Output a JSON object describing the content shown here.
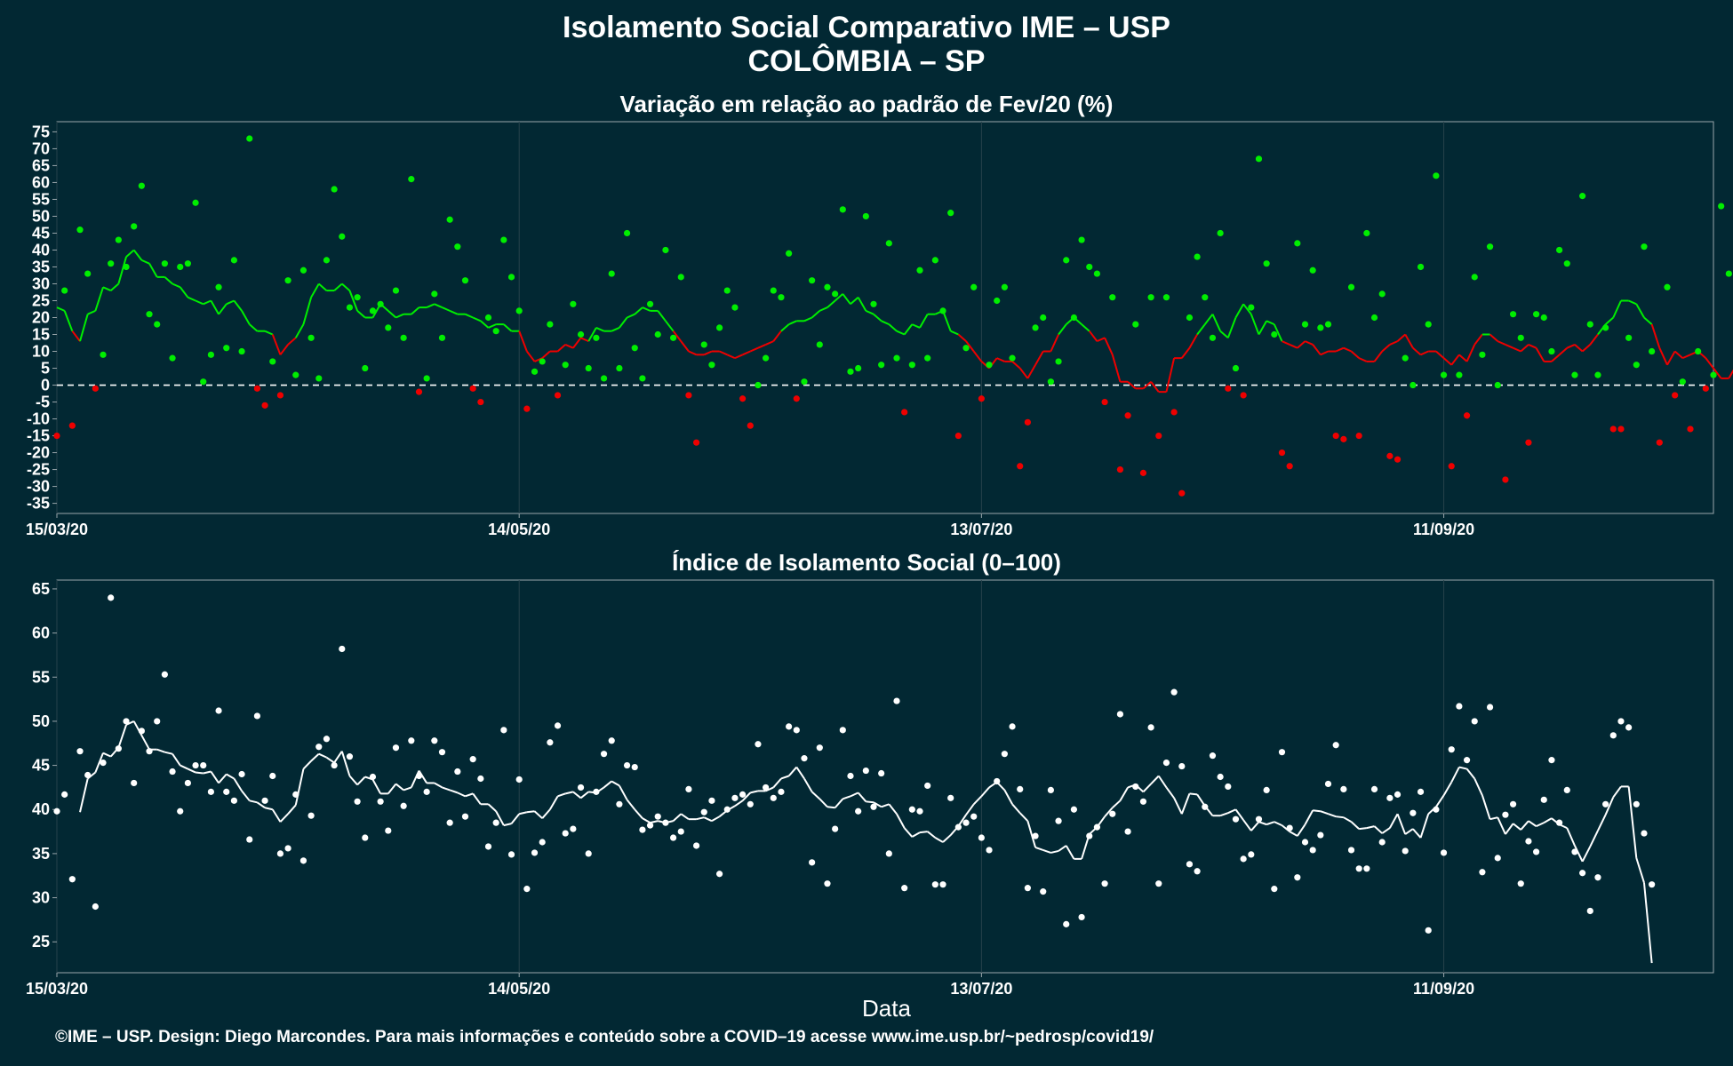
{
  "title_line1": "Isolamento Social Comparativo IME – USP",
  "title_line2": "COLÔMBIA – SP",
  "footer": "©IME – USP. Design: Diego Marcondes. Para mais informações e conteúdo sobre a COVID–19 acesse www.ime.usp.br/~pedrosp/covid19/",
  "colors": {
    "background": "#022833",
    "positive": "#00ee00",
    "negative": "#ee0000",
    "index": "#ffffff",
    "axis": "#9aa6ab"
  },
  "chart_data": [
    {
      "type": "scatter",
      "title": "Variação em relação ao padrão de Fev/20 (%)",
      "xlabel": "",
      "ylabel": "",
      "x_start": "2020-03-15",
      "x_end": "2020-10-16",
      "xticks": [
        "15/03/20",
        "14/05/20",
        "13/07/20",
        "11/09/20"
      ],
      "ylim": [
        -38,
        78
      ],
      "yticks": [
        75,
        70,
        65,
        60,
        55,
        50,
        45,
        40,
        35,
        30,
        25,
        20,
        15,
        10,
        5,
        0,
        -5,
        -10,
        -15,
        -20,
        -25,
        -30,
        -35
      ],
      "reference_line": 0,
      "series": [
        {
          "values": [
            -15,
            28,
            -12,
            46,
            33,
            -1,
            9,
            36,
            43,
            35,
            47,
            59,
            21,
            18,
            36,
            8,
            35,
            36,
            54,
            1,
            9,
            29,
            11,
            37,
            10,
            73,
            -1,
            -6,
            7,
            -3,
            31,
            3,
            34,
            14,
            2,
            37,
            58,
            44,
            23,
            26,
            5,
            22,
            24,
            17,
            28,
            14,
            61,
            -2,
            2,
            27,
            14,
            49,
            41,
            31,
            -1,
            -5,
            20,
            16,
            43,
            32,
            22,
            -7,
            4,
            7,
            18,
            -3,
            6,
            24,
            15,
            5,
            14,
            2,
            33,
            5,
            45,
            11,
            2,
            24,
            15,
            40,
            14,
            32,
            -3,
            -17,
            12,
            6,
            17,
            28,
            23,
            -4,
            -12,
            0,
            8,
            28,
            26,
            39,
            -4,
            1,
            31,
            12,
            29,
            27,
            52,
            4,
            5,
            50,
            24,
            6,
            42,
            8,
            -8,
            6,
            34,
            8,
            37,
            22,
            51,
            -15,
            11,
            29,
            -4,
            6,
            25,
            29,
            8,
            -24,
            -11,
            17,
            20,
            1,
            7,
            37,
            20,
            43,
            35,
            33,
            -5,
            26,
            -25,
            -9,
            18,
            -26,
            26,
            -15,
            26,
            -8,
            -32,
            20,
            38,
            26,
            14,
            45,
            -1,
            5,
            -3,
            23,
            67,
            36,
            15,
            -20,
            -24,
            42,
            18,
            34,
            17,
            18,
            -15,
            -16,
            29,
            -15,
            45,
            20,
            27,
            -21,
            -22,
            8,
            0,
            35,
            18,
            62,
            3,
            -24,
            3,
            -9,
            32,
            9,
            41,
            0,
            -28,
            21,
            14,
            -17,
            21,
            20,
            10,
            40,
            36,
            3,
            56,
            18,
            3,
            17,
            -13,
            -13,
            14,
            6,
            41,
            10,
            -17,
            29,
            -3,
            1,
            -13,
            10,
            -1,
            3,
            53,
            33,
            27,
            13,
            8
          ],
          "rolling": [
            23,
            22,
            16,
            13,
            21,
            22,
            29,
            28,
            30,
            38,
            40,
            37,
            36,
            32,
            32,
            30,
            29,
            26,
            25,
            24,
            25,
            21,
            24,
            25,
            22,
            18,
            16,
            16,
            15,
            9,
            12,
            14,
            18,
            26,
            30,
            28,
            28,
            30,
            28,
            22,
            20,
            20,
            24,
            22,
            20,
            21,
            21,
            23,
            23,
            24,
            23,
            22,
            21,
            21,
            20,
            19,
            17,
            18,
            18,
            16,
            16,
            10,
            7,
            8,
            10,
            10,
            12,
            11,
            14,
            13,
            17,
            16,
            16,
            17,
            20,
            21,
            23,
            22,
            22,
            19,
            16,
            13,
            10,
            9,
            9,
            10,
            10,
            9,
            8,
            9,
            10,
            11,
            12,
            13,
            16,
            18,
            19,
            19,
            20,
            22,
            23,
            25,
            27,
            24,
            26,
            22,
            21,
            19,
            18,
            16,
            15,
            18,
            17,
            21,
            21,
            22,
            16,
            15,
            13,
            10,
            7,
            5,
            8,
            7,
            7,
            5,
            2,
            6,
            10,
            10,
            15,
            18,
            20,
            18,
            16,
            13,
            14,
            9,
            1,
            1,
            -1,
            -1,
            1,
            -2,
            -2,
            8,
            8,
            11,
            15,
            18,
            21,
            16,
            14,
            20,
            24,
            21,
            15,
            19,
            18,
            13,
            12,
            11,
            13,
            12,
            9,
            10,
            10,
            11,
            10,
            8,
            7,
            7,
            10,
            12,
            13,
            15,
            11,
            9,
            10,
            10,
            8,
            6,
            9,
            7,
            12,
            15,
            15,
            13,
            12,
            11,
            10,
            12,
            11,
            7,
            7,
            9,
            11,
            12,
            10,
            12,
            15,
            18,
            20,
            25,
            25,
            24,
            20,
            18,
            11,
            6,
            10,
            8,
            9,
            10,
            8,
            5,
            2,
            2,
            6,
            9,
            14,
            19,
            20,
            20
          ]
        }
      ]
    },
    {
      "type": "scatter",
      "title": "Índice de Isolamento Social (0–100)",
      "xlabel": "Data",
      "ylabel": "",
      "x_start": "2020-03-15",
      "x_end": "2020-10-16",
      "xticks": [
        "15/03/20",
        "14/05/20",
        "13/07/20",
        "11/09/20"
      ],
      "ylim": [
        21.5,
        66
      ],
      "yticks": [
        65,
        60,
        55,
        50,
        45,
        40,
        35,
        30,
        25
      ],
      "series": [
        {
          "values": [
            39.8,
            41.7,
            32.1,
            46.6,
            43.9,
            29,
            45.3,
            64,
            46.9,
            50,
            43,
            48.9,
            46.6,
            50,
            55.3,
            44.3,
            39.8,
            43,
            45,
            45,
            42,
            51.2,
            42,
            41,
            44,
            36.6,
            50.6,
            41,
            43.8,
            35,
            35.6,
            41.7,
            34.2,
            39.3,
            47.1,
            48,
            45,
            58.2,
            46,
            40.9,
            36.8,
            43.7,
            40.9,
            37.6,
            47,
            40.4,
            47.8,
            43.8,
            42,
            47.8,
            46.5,
            38.5,
            44.3,
            39.2,
            45.7,
            43.5,
            35.8,
            38.5,
            49,
            34.9,
            43.4,
            31,
            35.1,
            36.3,
            47.6,
            49.5,
            37.3,
            37.8,
            42.5,
            35,
            42,
            46.3,
            47.8,
            40.6,
            45,
            44.8,
            37.7,
            38.2,
            39.2,
            38.5,
            36.8,
            37.5,
            42.3,
            35.9,
            39.7,
            41,
            32.7,
            40,
            41.3,
            41.7,
            40.6,
            47.4,
            42.5,
            41.3,
            42,
            49.4,
            49,
            45.8,
            34,
            47,
            31.6,
            37.8,
            49,
            43.8,
            39.8,
            44.4,
            40.3,
            44.1,
            35,
            52.3,
            31.1,
            40,
            39.8,
            42.7,
            31.5,
            31.5,
            41.3,
            38,
            38.5,
            39.2,
            36.8,
            35.4,
            43.2,
            46.3,
            49.4,
            42.3,
            31.1,
            37,
            30.7,
            42.2,
            38.7,
            27,
            40,
            27.8,
            37,
            38,
            31.6,
            39.5,
            50.8,
            37.5,
            42.6,
            40.9,
            49.3,
            31.6,
            45.3,
            53.3,
            44.9,
            33.8,
            33,
            40.3,
            46.1,
            43.7,
            42.6,
            38.9,
            34.4,
            34.9,
            38.9,
            42.2,
            31,
            46.5,
            37.9,
            32.3,
            36.3,
            35.4,
            37.1,
            42.9,
            47.3,
            42.3,
            35.4,
            33.3,
            33.3,
            42.3,
            36.3,
            41.3,
            41.7,
            35.3,
            39.6,
            42,
            26.3,
            40,
            35.1,
            46.8,
            51.7,
            45.6,
            50,
            32.9,
            51.6,
            34.5,
            39.4,
            40.6,
            31.6,
            36.4,
            35.2,
            41.1,
            45.6,
            38.5,
            42.2,
            35.2,
            32.8,
            28.5,
            32.3,
            40.6,
            48.4,
            50,
            49.3,
            40.6,
            37.3,
            31.5
          ],
          "rolling": [
            null,
            null,
            null,
            39.7,
            43.5,
            44.2,
            46.4,
            46,
            47,
            49.6,
            50,
            48.4,
            46.8,
            46.8,
            46.5,
            46.3,
            45,
            44.6,
            44.2,
            44.1,
            44.3,
            43,
            44,
            43.5,
            42.1,
            41,
            40.8,
            40.2,
            40,
            38.6,
            39.5,
            40.5,
            44.6,
            45.5,
            46.3,
            45.9,
            45.3,
            46.6,
            43.8,
            42.8,
            43.7,
            43.4,
            41.8,
            41.8,
            42.9,
            42.2,
            42.5,
            44.4,
            43,
            43,
            42.5,
            42.2,
            41.9,
            41.5,
            41.8,
            40.6,
            40.6,
            39.8,
            38.2,
            38.4,
            39.5,
            39.7,
            39.8,
            39,
            40,
            41.5,
            41.8,
            42,
            41.3,
            42,
            41.9,
            42.5,
            43.2,
            42.7,
            41.1,
            40,
            39,
            38.5,
            38.7,
            38.5,
            38.7,
            39.5,
            38.9,
            38.9,
            39.1,
            38.7,
            39.2,
            39.9,
            40.4,
            41,
            41.9,
            42.1,
            42.1,
            42.5,
            43.5,
            43.8,
            44.8,
            43.5,
            42,
            41.2,
            40.3,
            40.2,
            41.2,
            41.5,
            41.9,
            40.9,
            40.8,
            40.3,
            40.6,
            39.5,
            37.9,
            36.9,
            37.4,
            37.5,
            36.8,
            36.3,
            37.1,
            38.1,
            39.4,
            40.6,
            41.5,
            42.5,
            43.1,
            42.2,
            40.6,
            39.6,
            38.7,
            35.7,
            35.4,
            35.1,
            35.3,
            35.9,
            34.4,
            34.4,
            37.2,
            38,
            39.2,
            40.2,
            41,
            42.5,
            42.8,
            42,
            42.9,
            43.8,
            42.5,
            41.3,
            39.5,
            41.8,
            41.7,
            40.4,
            39.3,
            39.3,
            39.6,
            40,
            38.8,
            37.6,
            38.6,
            38.3,
            38.6,
            38.2,
            37.5,
            37,
            38.3,
            39.9,
            39.8,
            39.5,
            39.2,
            39.1,
            38.6,
            37.8,
            37.9,
            38.1,
            37.3,
            37.9,
            39.5,
            37.2,
            37.8,
            36.8,
            39.5,
            40.3,
            41.6,
            43.1,
            44.8,
            44.6,
            43.5,
            41.6,
            38.9,
            39.1,
            37.2,
            38.4,
            37.7,
            38.7,
            38.1,
            38.5,
            39,
            38.3,
            37.9,
            35.9,
            34.1,
            35.8,
            37.6,
            39.4,
            41.4,
            42.6,
            42.6,
            34.5,
            31.7,
            22.6
          ]
        }
      ]
    }
  ]
}
